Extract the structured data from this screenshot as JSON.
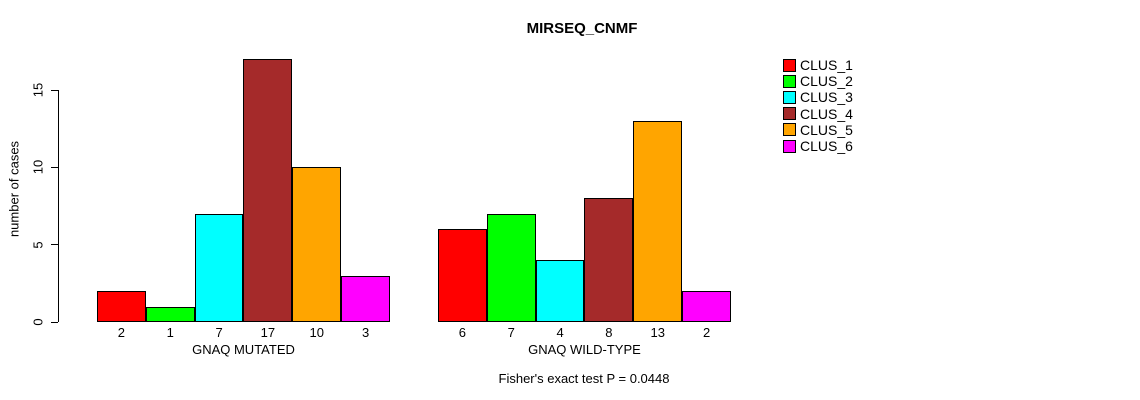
{
  "chart_data": {
    "type": "bar",
    "title": "MIRSEQ_CNMF",
    "ylabel": "number of cases",
    "footnote": "Fisher's exact test P = 0.0448",
    "yticks": [
      0,
      5,
      10,
      15
    ],
    "ylim": [
      0,
      17
    ],
    "grid": false,
    "legend_position": "right",
    "series": [
      {
        "name": "CLUS_1",
        "color": "#FF0000"
      },
      {
        "name": "CLUS_2",
        "color": "#00FF00"
      },
      {
        "name": "CLUS_3",
        "color": "#00FFFF"
      },
      {
        "name": "CLUS_4",
        "color": "#A52A2A"
      },
      {
        "name": "CLUS_5",
        "color": "#FFA500"
      },
      {
        "name": "CLUS_6",
        "color": "#FF00FF"
      }
    ],
    "groups": [
      {
        "label": "GNAQ MUTATED",
        "values": [
          2,
          1,
          7,
          17,
          10,
          3
        ]
      },
      {
        "label": "GNAQ WILD-TYPE",
        "values": [
          6,
          7,
          4,
          8,
          13,
          2
        ]
      }
    ]
  }
}
